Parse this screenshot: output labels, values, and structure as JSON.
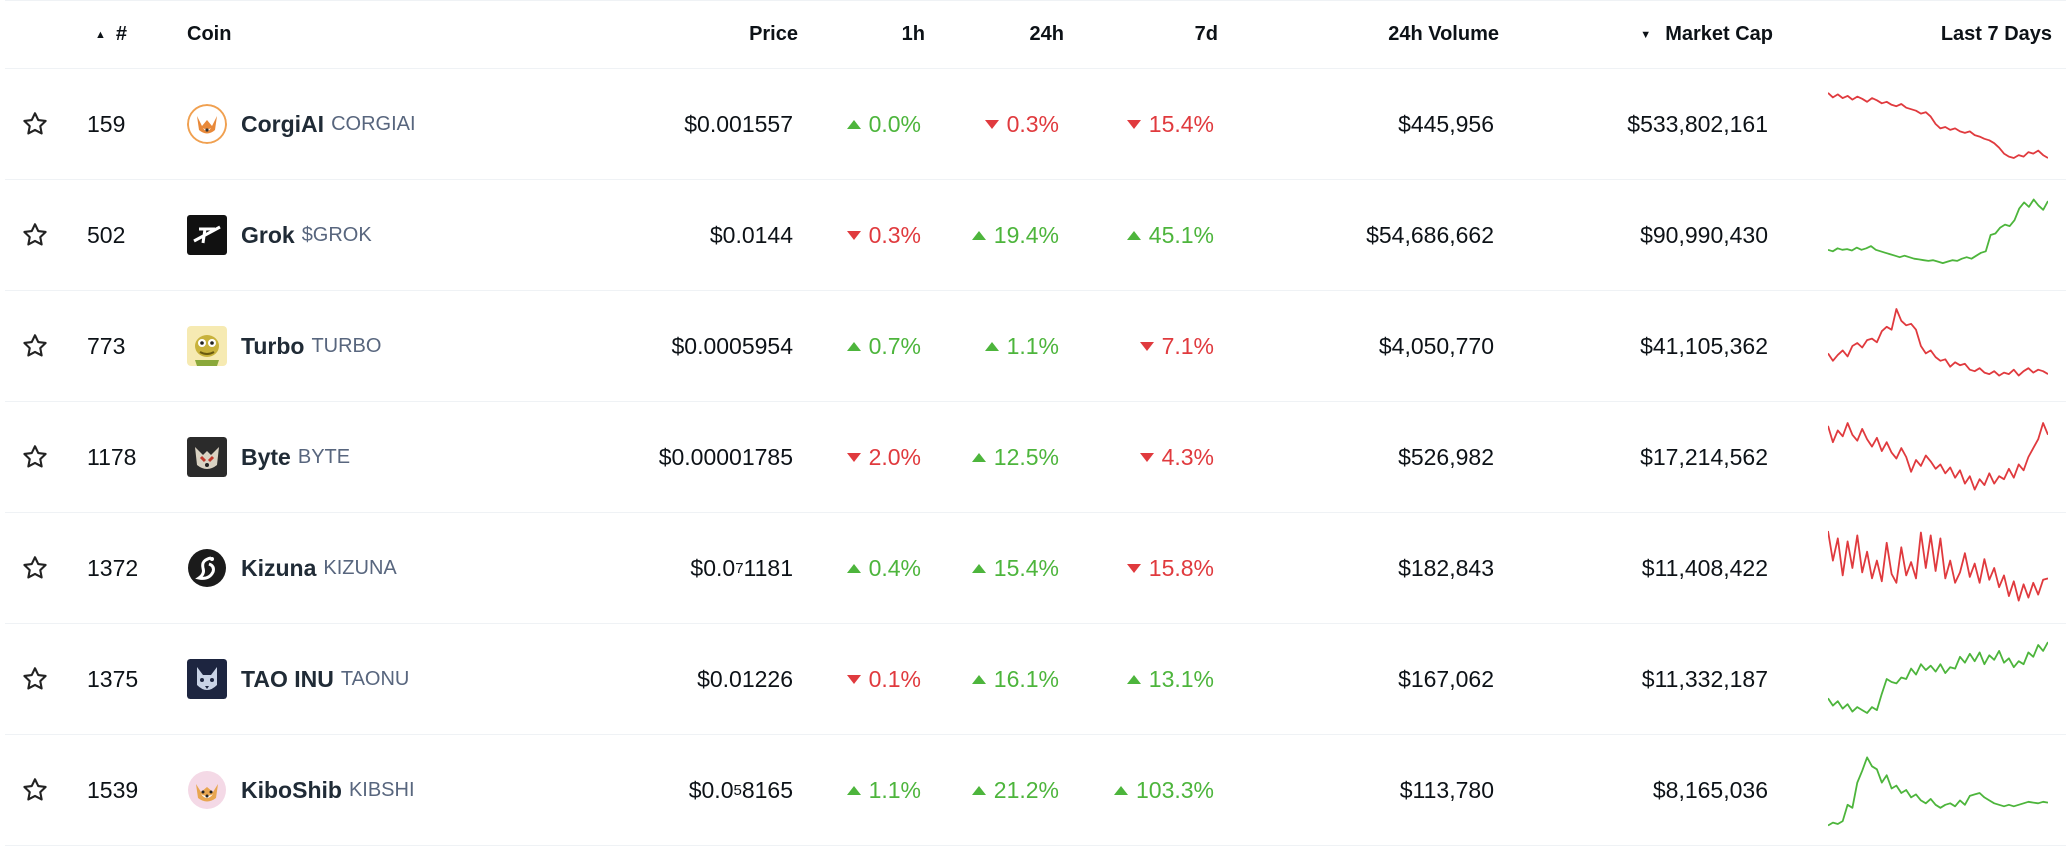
{
  "header": {
    "rank": "#",
    "coin": "Coin",
    "price": "Price",
    "h1": "1h",
    "h24": "24h",
    "d7": "7d",
    "volume": "24h Volume",
    "market_cap": "Market Cap",
    "last7": "Last 7 Days",
    "rank_sort": "▲",
    "mcap_sort": "▼"
  },
  "colors": {
    "up": "#4db53c",
    "down": "#e03a3e"
  },
  "rows": [
    {
      "rank": "159",
      "name": "CorgiAI",
      "symbol": "CORGIAI",
      "logo": "corgi-logo-icon",
      "price_main": "$0.001557",
      "price_sub": "",
      "price_tail": "",
      "h1": "0.0%",
      "h1_dir": "up",
      "h24": "0.3%",
      "h24_dir": "down",
      "d7": "15.4%",
      "d7_dir": "down",
      "volume": "$445,956",
      "market_cap": "$533,802,161",
      "trend": "down",
      "spark": [
        0.92,
        0.86,
        0.9,
        0.85,
        0.88,
        0.83,
        0.87,
        0.84,
        0.8,
        0.85,
        0.82,
        0.78,
        0.8,
        0.76,
        0.74,
        0.77,
        0.72,
        0.7,
        0.68,
        0.64,
        0.66,
        0.6,
        0.5,
        0.44,
        0.46,
        0.42,
        0.44,
        0.4,
        0.38,
        0.4,
        0.35,
        0.33,
        0.3,
        0.28,
        0.24,
        0.18,
        0.1,
        0.06,
        0.04,
        0.08,
        0.06,
        0.12,
        0.1,
        0.14,
        0.08,
        0.04
      ]
    },
    {
      "rank": "502",
      "name": "Grok",
      "symbol": "$GROK",
      "logo": "grok-logo-icon",
      "price_main": "$0.0144",
      "price_sub": "",
      "price_tail": "",
      "h1": "0.3%",
      "h1_dir": "down",
      "h24": "19.4%",
      "h24_dir": "up",
      "d7": "45.1%",
      "d7_dir": "up",
      "volume": "$54,686,662",
      "market_cap": "$90,990,430",
      "trend": "up",
      "spark": [
        0.3,
        0.28,
        0.32,
        0.3,
        0.31,
        0.29,
        0.33,
        0.3,
        0.32,
        0.35,
        0.3,
        0.28,
        0.26,
        0.24,
        0.22,
        0.2,
        0.22,
        0.2,
        0.18,
        0.17,
        0.16,
        0.15,
        0.16,
        0.14,
        0.12,
        0.14,
        0.16,
        0.15,
        0.18,
        0.2,
        0.18,
        0.22,
        0.26,
        0.28,
        0.5,
        0.52,
        0.6,
        0.64,
        0.62,
        0.7,
        0.86,
        0.94,
        0.88,
        0.98,
        0.9,
        0.84,
        0.96
      ]
    },
    {
      "rank": "773",
      "name": "Turbo",
      "symbol": "TURBO",
      "logo": "turbo-logo-icon",
      "price_main": "$0.0005954",
      "price_sub": "",
      "price_tail": "",
      "h1": "0.7%",
      "h1_dir": "up",
      "h24": "1.1%",
      "h24_dir": "up",
      "d7": "7.1%",
      "d7_dir": "down",
      "volume": "$4,050,770",
      "market_cap": "$41,105,362",
      "trend": "down",
      "spark": [
        0.4,
        0.3,
        0.38,
        0.44,
        0.36,
        0.5,
        0.54,
        0.48,
        0.58,
        0.6,
        0.55,
        0.7,
        0.76,
        0.72,
        1.0,
        0.84,
        0.78,
        0.8,
        0.72,
        0.5,
        0.4,
        0.44,
        0.35,
        0.3,
        0.32,
        0.22,
        0.28,
        0.24,
        0.26,
        0.18,
        0.16,
        0.2,
        0.14,
        0.12,
        0.16,
        0.1,
        0.14,
        0.12,
        0.18,
        0.1,
        0.16,
        0.2,
        0.14,
        0.18,
        0.16,
        0.12
      ]
    },
    {
      "rank": "1178",
      "name": "Byte",
      "symbol": "BYTE",
      "logo": "byte-logo-icon",
      "price_main": "$0.00001785",
      "price_sub": "",
      "price_tail": "",
      "h1": "2.0%",
      "h1_dir": "down",
      "h24": "12.5%",
      "h24_dir": "up",
      "d7": "4.3%",
      "d7_dir": "down",
      "volume": "$526,982",
      "market_cap": "$17,214,562",
      "trend": "down",
      "spark": [
        0.92,
        0.7,
        0.86,
        0.78,
        0.96,
        0.8,
        0.72,
        0.88,
        0.74,
        0.64,
        0.76,
        0.58,
        0.7,
        0.56,
        0.48,
        0.62,
        0.5,
        0.3,
        0.46,
        0.38,
        0.52,
        0.44,
        0.34,
        0.4,
        0.28,
        0.36,
        0.22,
        0.32,
        0.14,
        0.24,
        0.06,
        0.2,
        0.12,
        0.28,
        0.14,
        0.24,
        0.2,
        0.34,
        0.22,
        0.4,
        0.32,
        0.5,
        0.62,
        0.74,
        0.96,
        0.8
      ]
    },
    {
      "rank": "1372",
      "name": "Kizuna",
      "symbol": "KIZUNA",
      "logo": "kizuna-logo-icon",
      "price_main": "$0.0",
      "price_sub": "7",
      "price_tail": "1181",
      "h1": "0.4%",
      "h1_dir": "up",
      "h24": "15.4%",
      "h24_dir": "up",
      "d7": "15.8%",
      "d7_dir": "down",
      "volume": "$182,843",
      "market_cap": "$11,408,422",
      "trend": "down",
      "spark": [
        1.0,
        0.6,
        0.9,
        0.4,
        0.86,
        0.5,
        0.94,
        0.44,
        0.72,
        0.36,
        0.6,
        0.32,
        0.84,
        0.42,
        0.3,
        0.78,
        0.4,
        0.58,
        0.36,
        0.98,
        0.5,
        0.94,
        0.46,
        0.9,
        0.36,
        0.6,
        0.3,
        0.44,
        0.7,
        0.38,
        0.56,
        0.3,
        0.62,
        0.34,
        0.5,
        0.24,
        0.4,
        0.12,
        0.32,
        0.06,
        0.28,
        0.1,
        0.3,
        0.14,
        0.34,
        0.36
      ]
    },
    {
      "rank": "1375",
      "name": "TAO INU",
      "symbol": "TAONU",
      "logo": "tao-inu-logo-icon",
      "price_main": "$0.01226",
      "price_sub": "",
      "price_tail": "",
      "h1": "0.1%",
      "h1_dir": "down",
      "h24": "16.1%",
      "h24_dir": "up",
      "d7": "13.1%",
      "d7_dir": "up",
      "volume": "$167,062",
      "market_cap": "$11,332,187",
      "trend": "up",
      "spark": [
        0.24,
        0.14,
        0.2,
        0.1,
        0.16,
        0.06,
        0.12,
        0.08,
        0.04,
        0.12,
        0.08,
        0.3,
        0.5,
        0.46,
        0.44,
        0.52,
        0.5,
        0.64,
        0.56,
        0.7,
        0.62,
        0.68,
        0.6,
        0.7,
        0.58,
        0.66,
        0.64,
        0.8,
        0.72,
        0.84,
        0.74,
        0.86,
        0.7,
        0.82,
        0.76,
        0.88,
        0.72,
        0.78,
        0.66,
        0.74,
        0.7,
        0.86,
        0.8,
        0.96,
        0.88,
        1.0
      ]
    },
    {
      "rank": "1539",
      "name": "KiboShib",
      "symbol": "KIBSHI",
      "logo": "kiboshib-logo-icon",
      "price_main": "$0.0",
      "price_sub": "5",
      "price_tail": "8165",
      "h1": "1.1%",
      "h1_dir": "up",
      "h24": "21.2%",
      "h24_dir": "up",
      "d7": "103.3%",
      "d7_dir": "up",
      "volume": "$113,780",
      "market_cap": "$8,165,036",
      "trend": "up",
      "spark": [
        0.02,
        0.06,
        0.04,
        0.08,
        0.3,
        0.26,
        0.6,
        0.76,
        0.94,
        0.82,
        0.78,
        0.6,
        0.7,
        0.52,
        0.56,
        0.46,
        0.5,
        0.4,
        0.44,
        0.36,
        0.32,
        0.38,
        0.3,
        0.26,
        0.3,
        0.32,
        0.28,
        0.36,
        0.3,
        0.42,
        0.44,
        0.46,
        0.4,
        0.36,
        0.32,
        0.3,
        0.28,
        0.3,
        0.28,
        0.3,
        0.32,
        0.34,
        0.33,
        0.32,
        0.34,
        0.33
      ]
    }
  ]
}
